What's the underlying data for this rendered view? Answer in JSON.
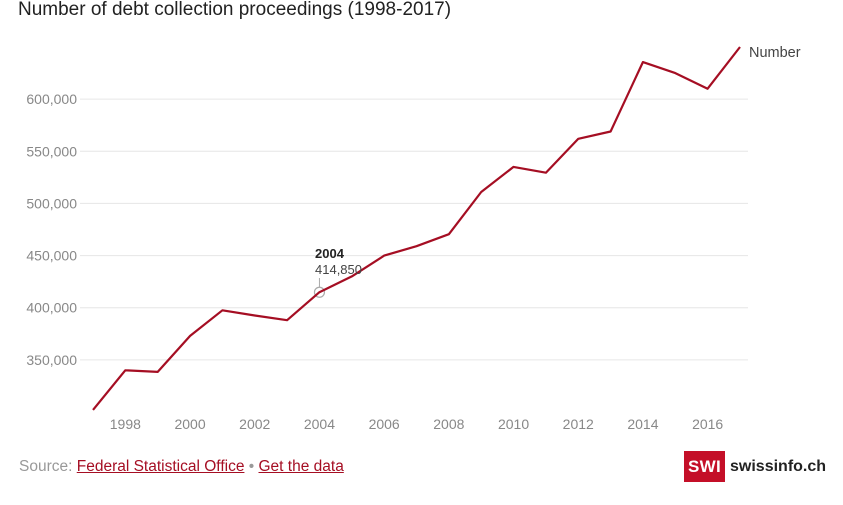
{
  "title": "Number of debt collection proceedings (1998-2017)",
  "footer": {
    "source_prefix": "Source:",
    "source_link": "Federal Statistical Office",
    "separator": "•",
    "data_link": "Get the data"
  },
  "brand": {
    "badge": "SWI",
    "name": "swissinfo.ch"
  },
  "colors": {
    "line": "#a50e23",
    "grid": "#e6e6e6",
    "tick": "#888888",
    "brand": "#c40f28"
  },
  "tooltip": {
    "label": "2004",
    "value": "414,850"
  },
  "chart_data": {
    "type": "line",
    "title": "Number of debt collection proceedings (1998-2017)",
    "xlabel": "",
    "ylabel": "",
    "series": [
      {
        "name": "Number",
        "x": [
          1997,
          1998,
          1999,
          2000,
          2001,
          2002,
          2003,
          2004,
          2005,
          2006,
          2007,
          2008,
          2009,
          2010,
          2011,
          2012,
          2013,
          2014,
          2015,
          2016,
          2017
        ],
        "values": [
          302000,
          340000,
          338500,
          373000,
          397500,
          392500,
          388000,
          414850,
          430000,
          450000,
          459000,
          470500,
          511000,
          535000,
          529500,
          562000,
          569000,
          635500,
          625000,
          610000,
          650000
        ]
      }
    ],
    "x_ticks": [
      "1998",
      "2000",
      "2002",
      "2004",
      "2006",
      "2008",
      "2010",
      "2012",
      "2014",
      "2016"
    ],
    "y_ticks": [
      "350,000",
      "400,000",
      "450,000",
      "500,000",
      "550,000",
      "600,000"
    ],
    "ylim": [
      300000,
      650000
    ],
    "xlim": [
      1997,
      2017
    ],
    "grid": true,
    "legend": "end-of-line label"
  }
}
